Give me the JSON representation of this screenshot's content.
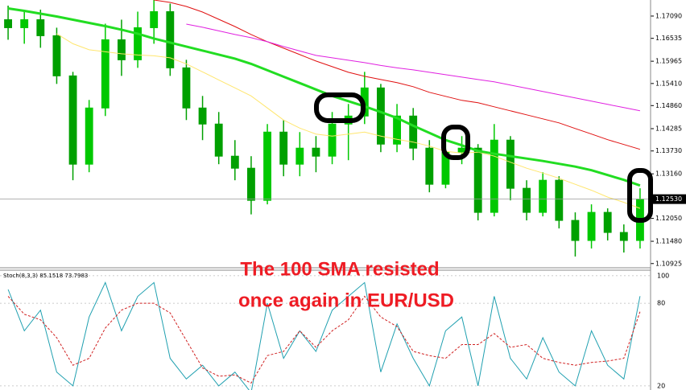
{
  "chart_data": [
    {
      "type": "candlestick",
      "annotation": [
        "The 100 SMA resisted",
        "once again in EUR/USD"
      ],
      "up_color": "#00c800",
      "down_color": "#00a000",
      "ylim": [
        1.1082,
        1.1749
      ],
      "yticks": [
        {
          "value": 1.1709,
          "label": "1.17090"
        },
        1.16535,
        1.15965,
        {
          "value": 1.1541,
          "label": "1.15410"
        },
        {
          "value": 1.1486,
          "label": "1.14860"
        },
        1.14285,
        {
          "value": 1.1373,
          "label": "1.13730"
        },
        {
          "value": 1.1316,
          "label": "1.13160"
        },
        {
          "value": 1.1205,
          "label": "1.12050"
        },
        {
          "value": 1.1148,
          "label": "1.11480"
        },
        1.10925
      ],
      "current_price": {
        "value": 1.1253,
        "label": "1.12530"
      },
      "candles": [
        {
          "open": 1.17,
          "high": 1.1735,
          "low": 1.165,
          "close": 1.168
        },
        {
          "open": 1.168,
          "high": 1.172,
          "low": 1.164,
          "close": 1.17
        },
        {
          "open": 1.17,
          "high": 1.1725,
          "low": 1.163,
          "close": 1.166
        },
        {
          "open": 1.166,
          "high": 1.168,
          "low": 1.154,
          "close": 1.156
        },
        {
          "open": 1.156,
          "high": 1.157,
          "low": 1.13,
          "close": 1.134
        },
        {
          "open": 1.134,
          "high": 1.15,
          "low": 1.132,
          "close": 1.148
        },
        {
          "open": 1.148,
          "high": 1.169,
          "low": 1.146,
          "close": 1.165
        },
        {
          "open": 1.165,
          "high": 1.17,
          "low": 1.156,
          "close": 1.16
        },
        {
          "open": 1.16,
          "high": 1.172,
          "low": 1.158,
          "close": 1.168
        },
        {
          "open": 1.168,
          "high": 1.1749,
          "low": 1.164,
          "close": 1.172
        },
        {
          "open": 1.172,
          "high": 1.174,
          "low": 1.156,
          "close": 1.158
        },
        {
          "open": 1.158,
          "high": 1.16,
          "low": 1.145,
          "close": 1.148
        },
        {
          "open": 1.148,
          "high": 1.151,
          "low": 1.14,
          "close": 1.144
        },
        {
          "open": 1.144,
          "high": 1.147,
          "low": 1.134,
          "close": 1.136
        },
        {
          "open": 1.136,
          "high": 1.14,
          "low": 1.13,
          "close": 1.133
        },
        {
          "open": 1.133,
          "high": 1.136,
          "low": 1.1215,
          "close": 1.125
        },
        {
          "open": 1.125,
          "high": 1.144,
          "low": 1.124,
          "close": 1.142
        },
        {
          "open": 1.142,
          "high": 1.145,
          "low": 1.131,
          "close": 1.134
        },
        {
          "open": 1.134,
          "high": 1.142,
          "low": 1.131,
          "close": 1.138
        },
        {
          "open": 1.138,
          "high": 1.141,
          "low": 1.132,
          "close": 1.136
        },
        {
          "open": 1.136,
          "high": 1.147,
          "low": 1.134,
          "close": 1.144
        },
        {
          "open": 1.144,
          "high": 1.149,
          "low": 1.135,
          "close": 1.146
        },
        {
          "open": 1.146,
          "high": 1.157,
          "low": 1.144,
          "close": 1.153
        },
        {
          "open": 1.153,
          "high": 1.154,
          "low": 1.137,
          "close": 1.139
        },
        {
          "open": 1.139,
          "high": 1.149,
          "low": 1.137,
          "close": 1.146
        },
        {
          "open": 1.146,
          "high": 1.148,
          "low": 1.135,
          "close": 1.138
        },
        {
          "open": 1.138,
          "high": 1.14,
          "low": 1.127,
          "close": 1.129
        },
        {
          "open": 1.129,
          "high": 1.14,
          "low": 1.128,
          "close": 1.137
        },
        {
          "open": 1.137,
          "high": 1.141,
          "low": 1.134,
          "close": 1.138
        },
        {
          "open": 1.138,
          "high": 1.139,
          "low": 1.12,
          "close": 1.122
        },
        {
          "open": 1.122,
          "high": 1.144,
          "low": 1.121,
          "close": 1.14
        },
        {
          "open": 1.14,
          "high": 1.141,
          "low": 1.125,
          "close": 1.128
        },
        {
          "open": 1.128,
          "high": 1.13,
          "low": 1.12,
          "close": 1.122
        },
        {
          "open": 1.122,
          "high": 1.132,
          "low": 1.121,
          "close": 1.13
        },
        {
          "open": 1.13,
          "high": 1.131,
          "low": 1.118,
          "close": 1.12
        },
        {
          "open": 1.12,
          "high": 1.122,
          "low": 1.111,
          "close": 1.115
        },
        {
          "open": 1.115,
          "high": 1.124,
          "low": 1.113,
          "close": 1.122
        },
        {
          "open": 1.122,
          "high": 1.123,
          "low": 1.115,
          "close": 1.117
        },
        {
          "open": 1.117,
          "high": 1.119,
          "low": 1.112,
          "close": 1.115
        },
        {
          "open": 1.115,
          "high": 1.128,
          "low": 1.113,
          "close": 1.1253
        }
      ],
      "series": [
        {
          "color": "#ffe66e",
          "width": 1,
          "values": [
            null,
            null,
            null,
            1.1665,
            1.164,
            1.1625,
            1.162,
            1.1615,
            1.1612,
            1.161,
            1.1605,
            1.159,
            1.157,
            1.155,
            1.153,
            1.151,
            1.148,
            1.145,
            1.143,
            1.1415,
            1.141,
            1.1415,
            1.142,
            1.141,
            1.1402,
            1.1395,
            1.1385,
            1.1372,
            1.1368,
            1.137,
            1.136,
            1.1345,
            1.133,
            1.1318,
            1.1305,
            1.129,
            1.1275,
            1.1258,
            1.1245,
            1.123
          ]
        },
        {
          "color": "#e01010",
          "width": 1,
          "values": [
            null,
            null,
            null,
            null,
            null,
            null,
            null,
            null,
            null,
            1.1749,
            1.1743,
            1.1733,
            1.1719,
            1.1701,
            1.1683,
            1.1663,
            1.1645,
            1.1629,
            1.1613,
            1.1597,
            1.1583,
            1.1569,
            1.1559,
            1.1551,
            1.1543,
            1.1533,
            1.1519,
            1.1509,
            1.1499,
            1.1493,
            1.1483,
            1.1473,
            1.1463,
            1.1453,
            1.1443,
            1.1429,
            1.1415,
            1.1401,
            1.1389,
            1.1377
          ]
        },
        {
          "color": "#e020e0",
          "width": 1,
          "values": [
            null,
            null,
            null,
            null,
            null,
            null,
            null,
            null,
            null,
            null,
            null,
            1.1689,
            1.1681,
            1.1672,
            1.1663,
            1.1655,
            1.1645,
            1.1633,
            1.1622,
            1.1611,
            1.1605,
            1.1599,
            1.1593,
            1.1586,
            1.158,
            1.1575,
            1.1569,
            1.1563,
            1.1557,
            1.1551,
            1.1545,
            1.1537,
            1.1529,
            1.1521,
            1.1513,
            1.1505,
            1.1497,
            1.1489,
            1.1481,
            1.1473
          ]
        },
        {
          "color": "#22dd22",
          "width": 3,
          "values": [
            1.1728,
            1.1722,
            1.1715,
            1.1708,
            1.17,
            1.1692,
            1.1684,
            1.1675,
            1.1665,
            1.1653,
            1.1643,
            1.1633,
            1.1623,
            1.1613,
            1.1603,
            1.159,
            1.1574,
            1.1558,
            1.1542,
            1.1526,
            1.151,
            1.1497,
            1.1484,
            1.147,
            1.1455,
            1.1436,
            1.1418,
            1.14,
            1.1387,
            1.1373,
            1.1366,
            1.136,
            1.1354,
            1.1348,
            1.1341,
            1.1334,
            1.1325,
            1.1313,
            1.1301,
            1.1287
          ]
        }
      ]
    },
    {
      "type": "line",
      "title": "Stoch(8,3,3) 85.1518 73.7983",
      "ylim": [
        17,
        104
      ],
      "yticks": [
        20,
        80,
        100
      ],
      "series": [
        {
          "color": "#20a0b0",
          "dash": false,
          "values": [
            90,
            60,
            75,
            30,
            20,
            70,
            95,
            60,
            85,
            95,
            40,
            25,
            35,
            20,
            30,
            15,
            80,
            40,
            60,
            45,
            75,
            85,
            95,
            30,
            65,
            40,
            20,
            60,
            70,
            20,
            85,
            40,
            25,
            55,
            30,
            20,
            60,
            35,
            25,
            85.1518
          ]
        },
        {
          "color": "#d02020",
          "dash": true,
          "values": [
            85,
            72,
            68,
            55,
            35,
            40,
            62,
            75,
            80,
            80,
            73,
            53,
            33,
            27,
            28,
            22,
            42,
            45,
            60,
            48,
            60,
            68,
            85,
            70,
            63,
            45,
            42,
            40,
            50,
            50,
            58,
            48,
            50,
            40,
            37,
            35,
            37,
            38,
            40,
            73.7983
          ]
        }
      ]
    }
  ]
}
